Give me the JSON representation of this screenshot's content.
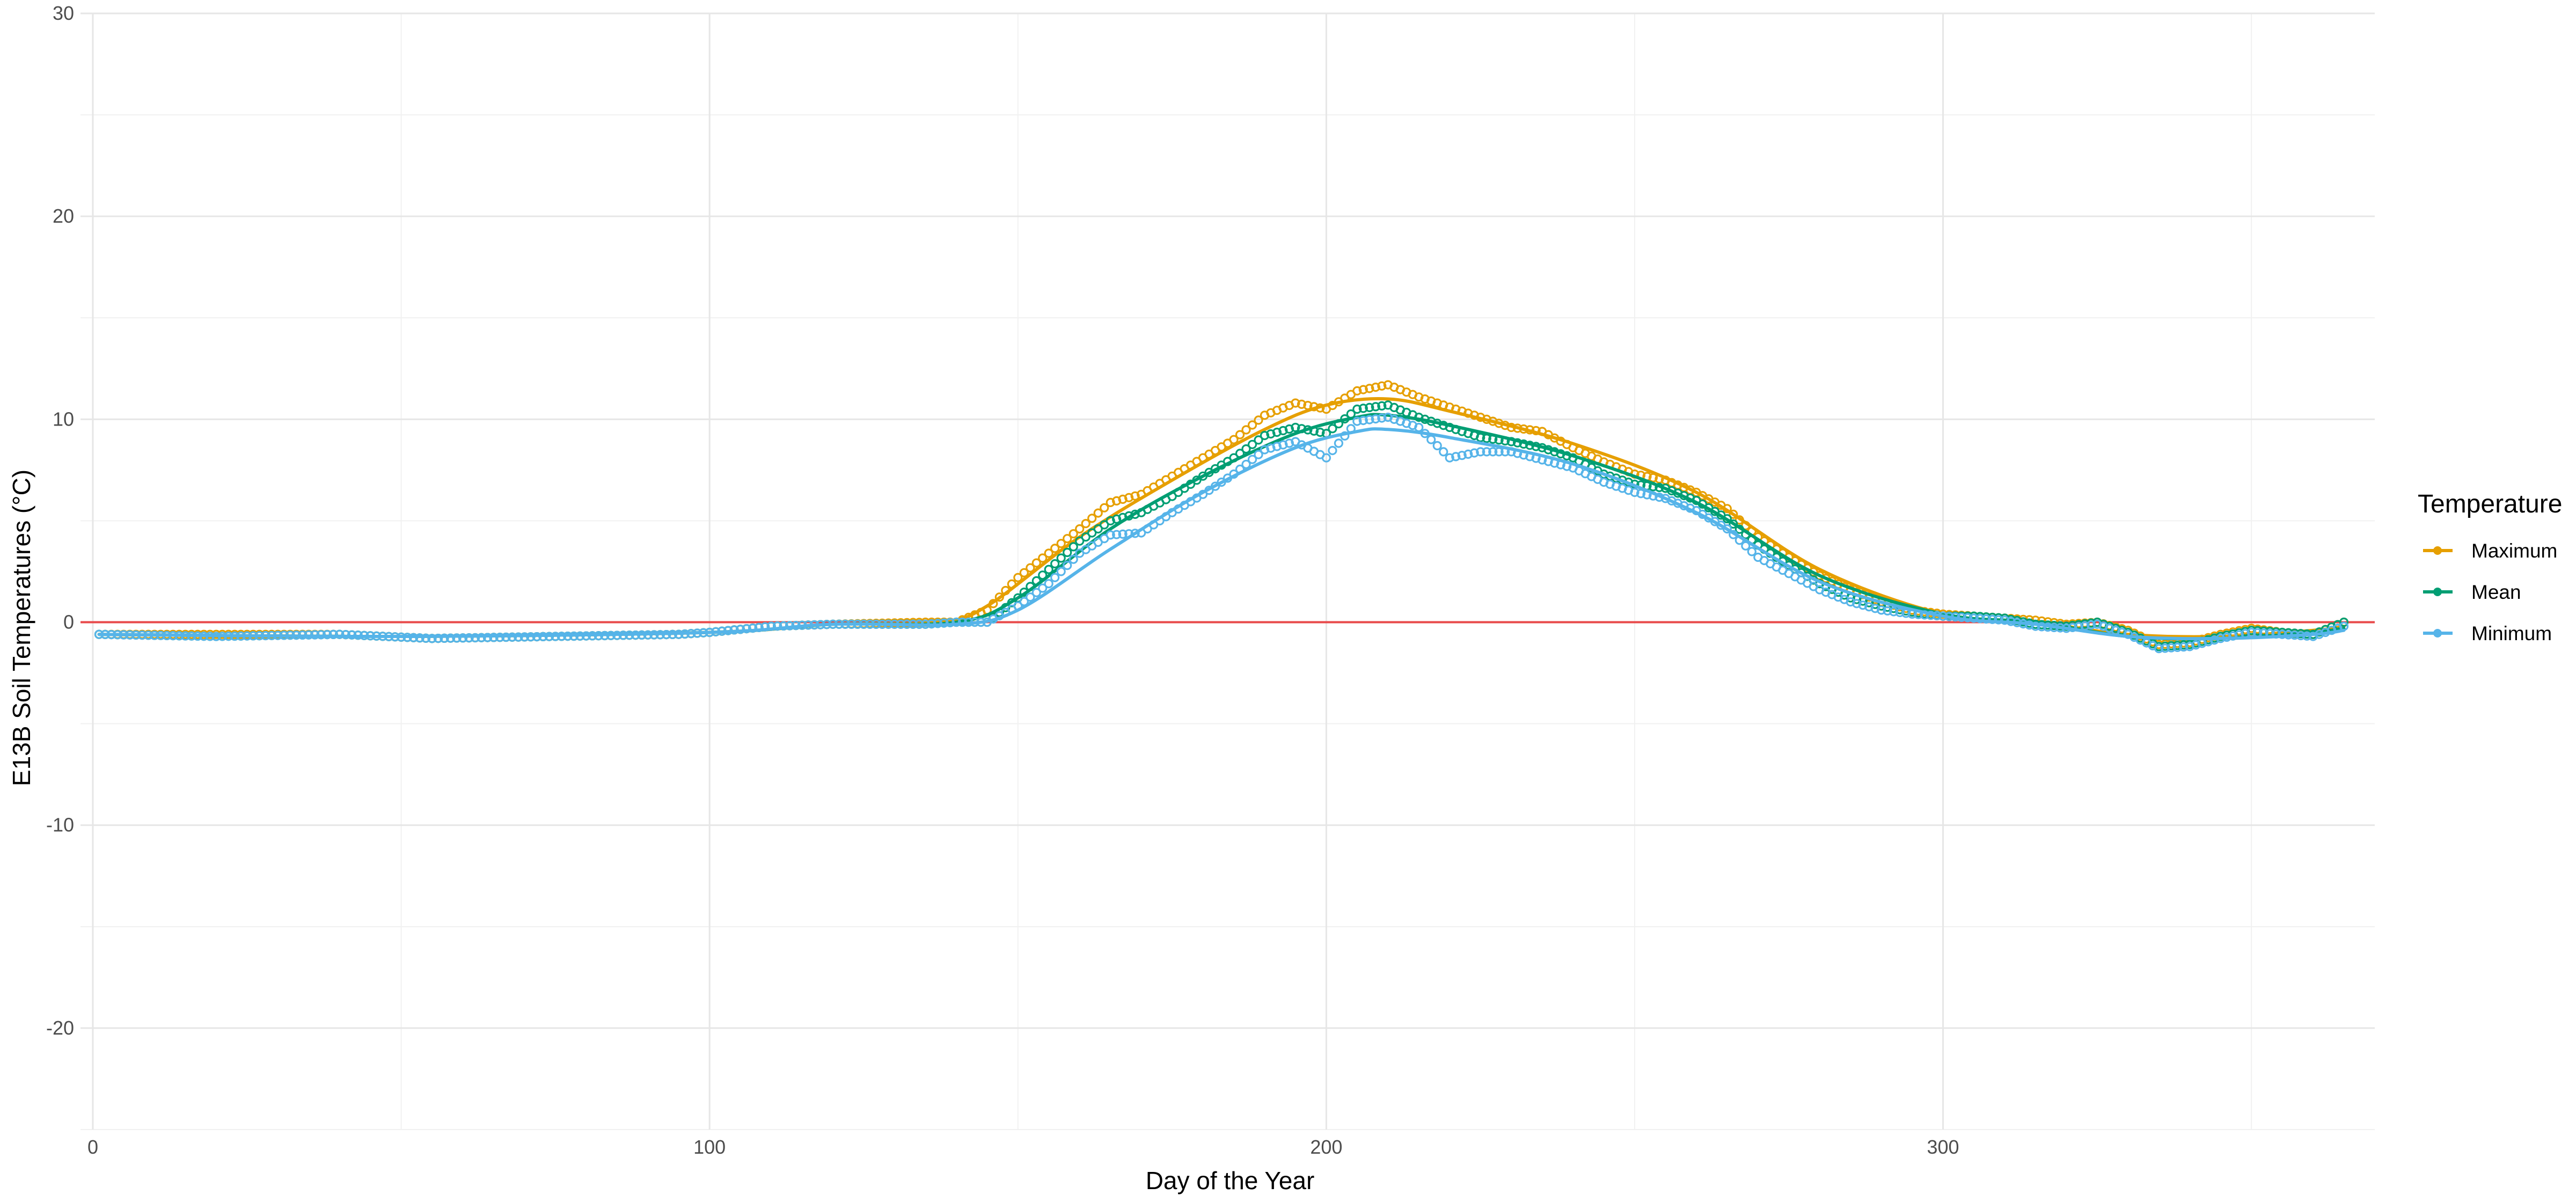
{
  "chart_data": {
    "type": "line",
    "title": "",
    "xlabel": "Day of the Year",
    "ylabel": "E13B Soil Temperatures (°C)",
    "xlim": [
      -2,
      370
    ],
    "ylim": [
      -25,
      30
    ],
    "x_ticks": [
      0,
      100,
      200,
      300
    ],
    "x_tick_labels": [
      "0",
      "100",
      "200",
      "300"
    ],
    "y_ticks": [
      -20,
      -10,
      0,
      10,
      20,
      30
    ],
    "y_tick_labels": [
      "-20",
      "-10",
      "0",
      "10",
      "20",
      "30"
    ],
    "grid": true,
    "reference_line": {
      "y": 0,
      "color": "#e8494a"
    },
    "legend": {
      "title": "Temperature",
      "position": "right"
    },
    "series": [
      {
        "name": "Maximum",
        "color": "#E69F00",
        "points": [
          [
            1,
            -0.6
          ],
          [
            20,
            -0.6
          ],
          [
            40,
            -0.6
          ],
          [
            55,
            -0.8
          ],
          [
            75,
            -0.7
          ],
          [
            95,
            -0.6
          ],
          [
            100,
            -0.5
          ],
          [
            110,
            -0.2
          ],
          [
            120,
            -0.1
          ],
          [
            135,
            0
          ],
          [
            140,
            0
          ],
          [
            145,
            0.6
          ],
          [
            150,
            2.2
          ],
          [
            155,
            3.4
          ],
          [
            160,
            4.6
          ],
          [
            165,
            5.9
          ],
          [
            170,
            6.3
          ],
          [
            175,
            7.2
          ],
          [
            180,
            8.1
          ],
          [
            185,
            9
          ],
          [
            190,
            10.2
          ],
          [
            195,
            10.8
          ],
          [
            200,
            10.5
          ],
          [
            205,
            11.4
          ],
          [
            210,
            11.7
          ],
          [
            215,
            11.1
          ],
          [
            220,
            10.6
          ],
          [
            225,
            10.1
          ],
          [
            230,
            9.6
          ],
          [
            235,
            9.4
          ],
          [
            240,
            8.6
          ],
          [
            245,
            7.9
          ],
          [
            250,
            7.3
          ],
          [
            255,
            7
          ],
          [
            260,
            6.4
          ],
          [
            265,
            5.6
          ],
          [
            270,
            4.2
          ],
          [
            275,
            3.2
          ],
          [
            280,
            2.3
          ],
          [
            285,
            1.6
          ],
          [
            290,
            1
          ],
          [
            295,
            0.6
          ],
          [
            300,
            0.4
          ],
          [
            305,
            0.3
          ],
          [
            310,
            0.2
          ],
          [
            315,
            0.1
          ],
          [
            320,
            -0.1
          ],
          [
            325,
            0
          ],
          [
            330,
            -0.4
          ],
          [
            335,
            -1.1
          ],
          [
            340,
            -1
          ],
          [
            345,
            -0.6
          ],
          [
            350,
            -0.3
          ],
          [
            355,
            -0.5
          ],
          [
            360,
            -0.6
          ],
          [
            365,
            0
          ]
        ],
        "smooth": [
          [
            1,
            -0.6
          ],
          [
            50,
            -0.7
          ],
          [
            100,
            -0.5
          ],
          [
            120,
            -0.1
          ],
          [
            137,
            0
          ],
          [
            145,
            0.8
          ],
          [
            160,
            4.2
          ],
          [
            175,
            7
          ],
          [
            190,
            9.5
          ],
          [
            200,
            10.7
          ],
          [
            210,
            11
          ],
          [
            220,
            10.4
          ],
          [
            240,
            8.8
          ],
          [
            260,
            6.4
          ],
          [
            280,
            2.6
          ],
          [
            300,
            0.4
          ],
          [
            315,
            0
          ],
          [
            330,
            -0.6
          ],
          [
            345,
            -0.7
          ],
          [
            360,
            -0.4
          ],
          [
            365,
            -0.2
          ]
        ]
      },
      {
        "name": "Mean",
        "color": "#009E73",
        "points": [
          [
            1,
            -0.6
          ],
          [
            20,
            -0.7
          ],
          [
            40,
            -0.6
          ],
          [
            55,
            -0.8
          ],
          [
            75,
            -0.7
          ],
          [
            95,
            -0.6
          ],
          [
            100,
            -0.5
          ],
          [
            110,
            -0.2
          ],
          [
            120,
            -0.1
          ],
          [
            135,
            -0.1
          ],
          [
            140,
            0
          ],
          [
            145,
            0
          ],
          [
            150,
            1.2
          ],
          [
            155,
            2.6
          ],
          [
            160,
            4
          ],
          [
            165,
            5
          ],
          [
            170,
            5.4
          ],
          [
            175,
            6.2
          ],
          [
            180,
            7.2
          ],
          [
            185,
            8.1
          ],
          [
            190,
            9.2
          ],
          [
            195,
            9.6
          ],
          [
            200,
            9.3
          ],
          [
            205,
            10.5
          ],
          [
            210,
            10.7
          ],
          [
            215,
            10.1
          ],
          [
            220,
            9.6
          ],
          [
            225,
            9.1
          ],
          [
            230,
            8.9
          ],
          [
            235,
            8.6
          ],
          [
            240,
            8.1
          ],
          [
            245,
            7.3
          ],
          [
            250,
            6.8
          ],
          [
            255,
            6.6
          ],
          [
            260,
            6
          ],
          [
            265,
            5.1
          ],
          [
            270,
            3.8
          ],
          [
            275,
            2.8
          ],
          [
            280,
            1.9
          ],
          [
            285,
            1.2
          ],
          [
            290,
            0.8
          ],
          [
            295,
            0.5
          ],
          [
            300,
            0.3
          ],
          [
            305,
            0.3
          ],
          [
            310,
            0.2
          ],
          [
            315,
            -0.1
          ],
          [
            320,
            -0.2
          ],
          [
            325,
            0
          ],
          [
            330,
            -0.5
          ],
          [
            335,
            -1.2
          ],
          [
            340,
            -1.1
          ],
          [
            345,
            -0.7
          ],
          [
            350,
            -0.4
          ],
          [
            355,
            -0.5
          ],
          [
            360,
            -0.6
          ],
          [
            365,
            0
          ]
        ],
        "smooth": [
          [
            1,
            -0.6
          ],
          [
            50,
            -0.7
          ],
          [
            100,
            -0.5
          ],
          [
            120,
            -0.1
          ],
          [
            140,
            0
          ],
          [
            150,
            1.2
          ],
          [
            165,
            4.6
          ],
          [
            180,
            7.2
          ],
          [
            195,
            9.3
          ],
          [
            205,
            10.1
          ],
          [
            210,
            10.2
          ],
          [
            220,
            9.7
          ],
          [
            240,
            8.2
          ],
          [
            260,
            5.9
          ],
          [
            280,
            2.3
          ],
          [
            300,
            0.4
          ],
          [
            315,
            0
          ],
          [
            330,
            -0.7
          ],
          [
            345,
            -0.8
          ],
          [
            360,
            -0.5
          ],
          [
            365,
            -0.3
          ]
        ]
      },
      {
        "name": "Minimum",
        "color": "#56B4E9",
        "points": [
          [
            1,
            -0.6
          ],
          [
            20,
            -0.7
          ],
          [
            40,
            -0.6
          ],
          [
            55,
            -0.8
          ],
          [
            75,
            -0.7
          ],
          [
            95,
            -0.6
          ],
          [
            100,
            -0.5
          ],
          [
            110,
            -0.2
          ],
          [
            120,
            -0.1
          ],
          [
            135,
            -0.1
          ],
          [
            140,
            0
          ],
          [
            145,
            0
          ],
          [
            150,
            0.8
          ],
          [
            155,
            1.9
          ],
          [
            160,
            3.4
          ],
          [
            165,
            4.3
          ],
          [
            170,
            4.4
          ],
          [
            175,
            5.4
          ],
          [
            180,
            6.3
          ],
          [
            185,
            7.3
          ],
          [
            190,
            8.5
          ],
          [
            195,
            8.9
          ],
          [
            200,
            8.1
          ],
          [
            205,
            9.9
          ],
          [
            210,
            10.1
          ],
          [
            215,
            9.6
          ],
          [
            220,
            8.1
          ],
          [
            225,
            8.4
          ],
          [
            230,
            8.4
          ],
          [
            235,
            8
          ],
          [
            240,
            7.6
          ],
          [
            245,
            6.9
          ],
          [
            250,
            6.4
          ],
          [
            255,
            6.1
          ],
          [
            260,
            5.5
          ],
          [
            265,
            4.6
          ],
          [
            270,
            3.2
          ],
          [
            275,
            2.4
          ],
          [
            280,
            1.6
          ],
          [
            285,
            1
          ],
          [
            290,
            0.6
          ],
          [
            295,
            0.4
          ],
          [
            300,
            0.3
          ],
          [
            305,
            0.2
          ],
          [
            310,
            0.1
          ],
          [
            315,
            -0.2
          ],
          [
            320,
            -0.3
          ],
          [
            325,
            -0.1
          ],
          [
            330,
            -0.6
          ],
          [
            335,
            -1.3
          ],
          [
            340,
            -1.2
          ],
          [
            345,
            -0.8
          ],
          [
            350,
            -0.5
          ],
          [
            355,
            -0.6
          ],
          [
            360,
            -0.7
          ],
          [
            365,
            -0.2
          ]
        ],
        "smooth": [
          [
            1,
            -0.6
          ],
          [
            50,
            -0.7
          ],
          [
            100,
            -0.5
          ],
          [
            120,
            -0.1
          ],
          [
            140,
            -0.1
          ],
          [
            150,
            0.6
          ],
          [
            165,
            3.6
          ],
          [
            180,
            6.4
          ],
          [
            195,
            8.6
          ],
          [
            205,
            9.4
          ],
          [
            210,
            9.5
          ],
          [
            220,
            9.1
          ],
          [
            240,
            7.8
          ],
          [
            260,
            5.4
          ],
          [
            280,
            2
          ],
          [
            300,
            0.3
          ],
          [
            315,
            -0.1
          ],
          [
            330,
            -0.7
          ],
          [
            345,
            -0.8
          ],
          [
            360,
            -0.6
          ],
          [
            365,
            -0.4
          ]
        ]
      }
    ]
  }
}
